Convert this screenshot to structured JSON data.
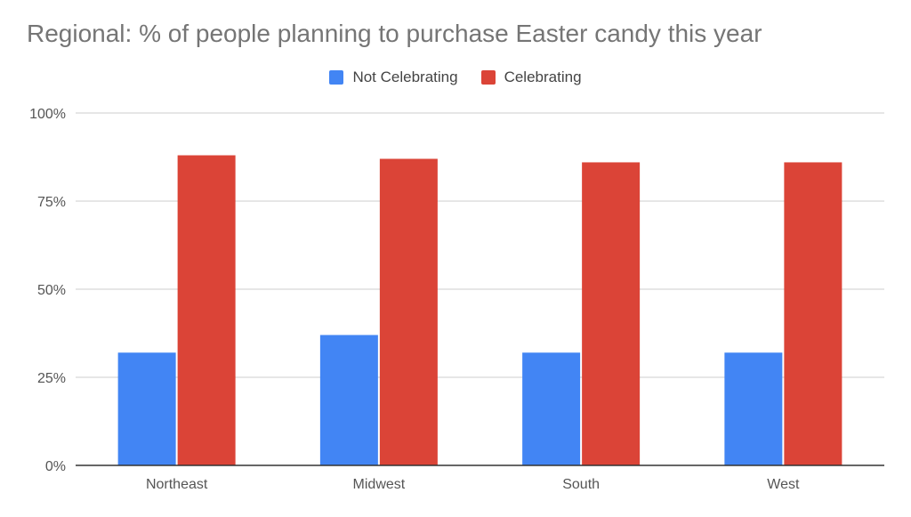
{
  "chart_data": {
    "type": "bar",
    "title": "Regional: % of people planning to purchase Easter candy this year",
    "xlabel": "",
    "ylabel": "",
    "categories": [
      "Northeast",
      "Midwest",
      "South",
      "West"
    ],
    "series": [
      {
        "name": "Not Celebrating",
        "color": "#4285f4",
        "values": [
          32,
          37,
          32,
          32
        ]
      },
      {
        "name": "Celebrating",
        "color": "#db4437",
        "values": [
          88,
          87,
          86,
          86
        ]
      }
    ],
    "ylim": [
      0,
      100
    ],
    "yticks": [
      0,
      25,
      50,
      75,
      100
    ],
    "ytick_labels": [
      "0%",
      "25%",
      "50%",
      "75%",
      "100%"
    ],
    "grid": true,
    "legend_position": "top-center"
  }
}
